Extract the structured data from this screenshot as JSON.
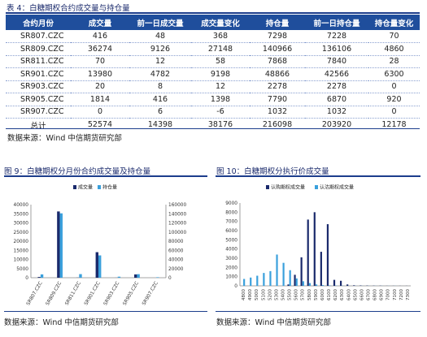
{
  "table4": {
    "caption": "表 4：白糖期权合约成交量与持仓量",
    "headers": [
      "合约月份",
      "成交量",
      "前一日成交量",
      "成交量变化",
      "持仓量",
      "前一日持仓量",
      "持仓量变化"
    ],
    "rows": [
      [
        "SR807.CZC",
        "416",
        "48",
        "368",
        "7298",
        "7228",
        "70"
      ],
      [
        "SR809.CZC",
        "36274",
        "9126",
        "27148",
        "140966",
        "136106",
        "4860"
      ],
      [
        "SR811.CZC",
        "70",
        "12",
        "58",
        "7868",
        "7840",
        "28"
      ],
      [
        "SR901.CZC",
        "13980",
        "4782",
        "9198",
        "48866",
        "42566",
        "6300"
      ],
      [
        "SR903.CZC",
        "20",
        "8",
        "12",
        "2278",
        "2278",
        "0"
      ],
      [
        "SR905.CZC",
        "1814",
        "416",
        "1398",
        "7790",
        "6870",
        "920"
      ],
      [
        "SR907.CZC",
        "0",
        "6",
        "-6",
        "1032",
        "1032",
        "0"
      ]
    ],
    "total_row": [
      "总计",
      "52574",
      "14398",
      "38176",
      "216098",
      "203920",
      "12178"
    ],
    "source": "数据来源：Wind  中信期货研究部"
  },
  "fig9": {
    "caption": "图 9：白糖期权分月份合约成交量及持仓量",
    "source": "数据来源：Wind  中信期货研究部"
  },
  "fig10": {
    "caption": "图 10：白糖期权分执行价成交量",
    "source": "数据来源：Wind  中信期货研究部"
  },
  "chart_data": [
    {
      "type": "bar",
      "categories": [
        "SR807.CZC",
        "SR809.CZC",
        "SR811.CZC",
        "SR901.CZC",
        "SR903.CZC",
        "SR905.CZC",
        "SR907.CZC"
      ],
      "series": [
        {
          "name": "成交量",
          "axis": "left",
          "color": "#1a2a6c",
          "values": [
            416,
            36274,
            70,
            13980,
            20,
            1814,
            0
          ]
        },
        {
          "name": "持仓量",
          "axis": "right",
          "color": "#3aa0dc",
          "values": [
            7298,
            140966,
            7868,
            48866,
            2278,
            7790,
            1032
          ]
        }
      ],
      "ylim_left": [
        0,
        40000
      ],
      "yticks_left": [
        "0",
        "5000",
        "10000",
        "15000",
        "20000",
        "25000",
        "30000",
        "35000",
        "40000"
      ],
      "ylim_right": [
        0,
        160000
      ],
      "yticks_right": [
        "0",
        "20000",
        "40000",
        "60000",
        "80000",
        "100000",
        "120000",
        "140000",
        "160000"
      ],
      "legend": "top"
    },
    {
      "type": "bar",
      "categories": [
        "4800",
        "4900",
        "5000",
        "5100",
        "5200",
        "5300",
        "5400",
        "5500",
        "5600",
        "5700",
        "5800",
        "5900",
        "6000",
        "6100",
        "6200",
        "6300",
        "6400",
        "6500",
        "6600",
        "6700",
        "6800",
        "6900",
        "7000",
        "7100",
        "7200",
        "7300"
      ],
      "series": [
        {
          "name": "认购期权成交量",
          "color": "#1a2a6c",
          "values": [
            0,
            0,
            0,
            0,
            0,
            0,
            0,
            150,
            1200,
            3100,
            7200,
            8000,
            3700,
            6700,
            650,
            550,
            150,
            60,
            40,
            30,
            20,
            20,
            10,
            10,
            10,
            10
          ]
        },
        {
          "name": "认沽期权成交量",
          "color": "#3aa0dc",
          "values": [
            750,
            900,
            1100,
            1400,
            1600,
            3400,
            2500,
            1700,
            800,
            500,
            300,
            150,
            80,
            50,
            30,
            20,
            10,
            10,
            10,
            10,
            10,
            10,
            10,
            10,
            0,
            0
          ]
        }
      ],
      "ylim": [
        0,
        9000
      ],
      "yticks": [
        "0",
        "1000",
        "2000",
        "3000",
        "4000",
        "5000",
        "6000",
        "7000",
        "8000",
        "9000"
      ],
      "legend": "top"
    }
  ]
}
